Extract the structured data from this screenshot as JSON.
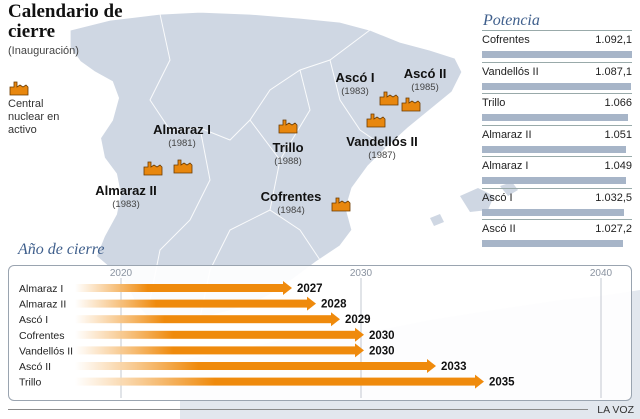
{
  "title": "Calendario de cierre",
  "subtitle": "(Inauguración)",
  "legend": {
    "label": "Central nuclear en activo",
    "icon": "nuclear-plant-icon"
  },
  "plants": [
    {
      "name": "Almaraz I",
      "year": "(1981)"
    },
    {
      "name": "Almaraz II",
      "year": "(1983)"
    },
    {
      "name": "Trillo",
      "year": "(1988)"
    },
    {
      "name": "Cofrentes",
      "year": "(1984)"
    },
    {
      "name": "Ascó I",
      "year": "(1983)"
    },
    {
      "name": "Ascó II",
      "year": "(1985)"
    },
    {
      "name": "Vandellós II",
      "year": "(1987)"
    }
  ],
  "potencia": {
    "title": "Potencia",
    "rows": [
      {
        "name": "Cofrentes",
        "value": 1092.1,
        "label": "1.092,1"
      },
      {
        "name": "Vandellós II",
        "value": 1087.1,
        "label": "1.087,1"
      },
      {
        "name": "Trillo",
        "value": 1066,
        "label": "1.066"
      },
      {
        "name": "Almaraz II",
        "value": 1051,
        "label": "1.051"
      },
      {
        "name": "Almaraz I",
        "value": 1049,
        "label": "1.049"
      },
      {
        "name": "Ascó I",
        "value": 1032.5,
        "label": "1.032,5"
      },
      {
        "name": "Ascó II",
        "value": 1027.2,
        "label": "1.027,2"
      }
    ]
  },
  "chart_data": {
    "type": "bar",
    "title": "Año de cierre",
    "orientation": "horizontal",
    "categories": [
      "Almaraz I",
      "Almaraz II",
      "Ascó I",
      "Cofrentes",
      "Vandellós II",
      "Ascó II",
      "Trillo"
    ],
    "values": [
      2027,
      2028,
      2029,
      2030,
      2030,
      2033,
      2035
    ],
    "ticks": [
      2020,
      2030,
      2040
    ],
    "xlim": [
      2020,
      2040
    ]
  },
  "colors": {
    "bar": "#ef8a0c",
    "sea": "#ffffff",
    "land": "#cfd7e3",
    "accent": "#3f5f8c",
    "potencia_bar": "#a7b5c8",
    "plant_icon": "#e8870e"
  },
  "credit": "LA VOZ"
}
